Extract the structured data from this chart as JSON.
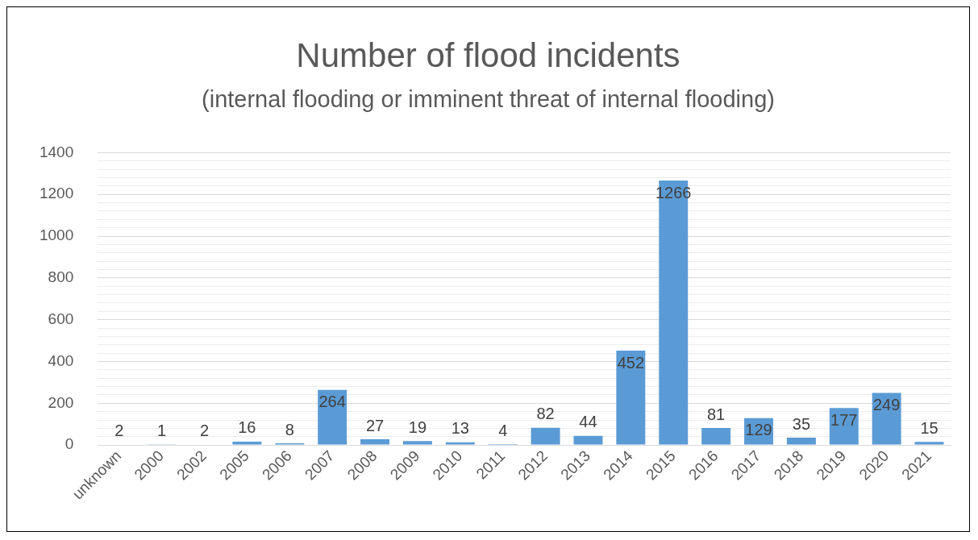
{
  "chart_data": {
    "type": "bar",
    "title": "Number of flood incidents",
    "subtitle": "(internal flooding or imminent threat of internal flooding)",
    "categories": [
      "unknown",
      "2000",
      "2002",
      "2005",
      "2006",
      "2007",
      "2008",
      "2009",
      "2010",
      "2011",
      "2012",
      "2013",
      "2014",
      "2015",
      "2016",
      "2017",
      "2018",
      "2019",
      "2020",
      "2021"
    ],
    "values": [
      2,
      1,
      2,
      16,
      8,
      264,
      27,
      19,
      13,
      4,
      82,
      44,
      452,
      1266,
      81,
      129,
      35,
      177,
      249,
      15
    ],
    "color": "#5b9bd5",
    "data_labels": true,
    "ylim": [
      0,
      1400
    ],
    "yticks": [
      0,
      {
        "value": 40,
        "label": null
      },
      {
        "value": 80,
        "label": null
      },
      {
        "value": 120,
        "label": null
      },
      {
        "value": 160,
        "label": null
      },
      200,
      {
        "value": 240,
        "label": null
      },
      {
        "value": 280,
        "label": null
      },
      {
        "value": 320,
        "label": null
      },
      {
        "value": 360,
        "label": null
      },
      400,
      {
        "value": 440,
        "label": null
      },
      {
        "value": 480,
        "label": null
      },
      {
        "value": 520,
        "label": null
      },
      {
        "value": 560,
        "label": null
      },
      600,
      {
        "value": 640,
        "label": null
      },
      {
        "value": 680,
        "label": null
      },
      {
        "value": 720,
        "label": null
      },
      {
        "value": 760,
        "label": null
      },
      800,
      {
        "value": 840,
        "label": null
      },
      {
        "value": 880,
        "label": null
      },
      {
        "value": 920,
        "label": null
      },
      {
        "value": 960,
        "label": null
      },
      1000,
      {
        "value": 1040,
        "label": null
      },
      {
        "value": 1080,
        "label": null
      },
      {
        "value": 1120,
        "label": null
      },
      {
        "value": 1160,
        "label": null
      },
      1200,
      {
        "value": 1240,
        "label": null
      },
      {
        "value": 1280,
        "label": null
      },
      {
        "value": 1320,
        "label": null
      },
      {
        "value": 1360,
        "label": null
      },
      1400
    ],
    "grid": "y",
    "legend": false
  }
}
